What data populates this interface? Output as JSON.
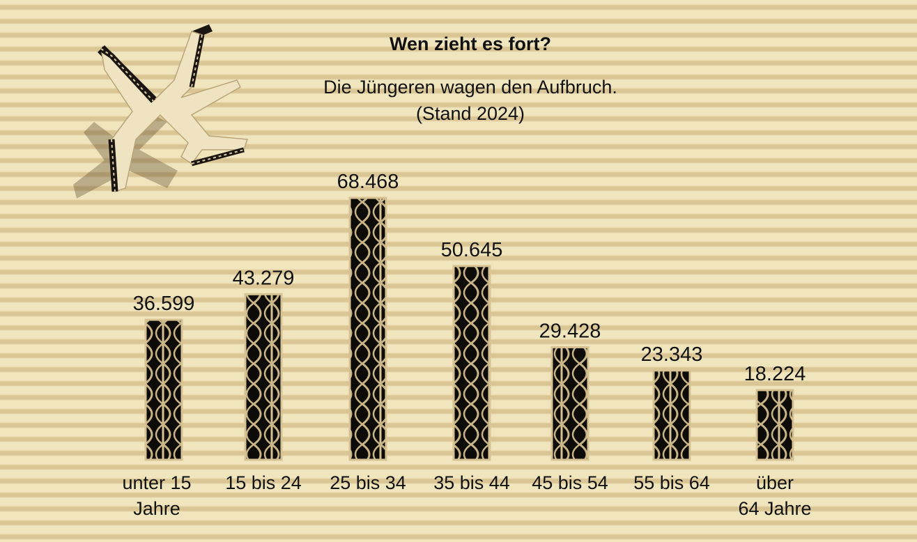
{
  "chart_data": {
    "type": "bar",
    "title": "Wen zieht es fort?",
    "subtitle_lines": [
      "Die Jüngeren wagen den Aufbruch.",
      "(Stand 2024)"
    ],
    "categories": [
      [
        "unter 15",
        "Jahre"
      ],
      [
        "15 bis 24"
      ],
      [
        "25 bis 34"
      ],
      [
        "35 bis 44"
      ],
      [
        "45 bis 54"
      ],
      [
        "55 bis 64"
      ],
      [
        "über",
        "64 Jahre"
      ]
    ],
    "values": [
      36599,
      43279,
      68468,
      50645,
      29428,
      23343,
      18224
    ],
    "value_labels": [
      "36.599",
      "43.279",
      "68.468",
      "50.645",
      "29.428",
      "23.343",
      "18.224"
    ],
    "ylim": [
      0,
      68468
    ],
    "grid": false,
    "colors": {
      "bar": "#0d0b08",
      "bar_edge": "#d6c293",
      "flute": "#c9b485",
      "background": "#e6d5a6"
    }
  },
  "decoration": {
    "icon": "cardboard-airplane-icon"
  }
}
